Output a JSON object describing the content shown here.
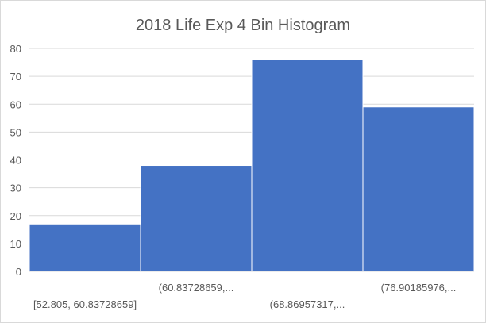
{
  "chart_data": {
    "type": "bar",
    "title": "2018 Life Exp 4 Bin Histogram",
    "categories": [
      "[52.805, 60.83728659]",
      "(60.83728659,...",
      "(68.86957317,...",
      "(76.90185976,..."
    ],
    "values": [
      17,
      38,
      76,
      59
    ],
    "ylim": [
      0,
      80
    ],
    "yticks": [
      0,
      10,
      20,
      30,
      40,
      50,
      60,
      70,
      80
    ],
    "grid": true,
    "legend": "none",
    "bar_color": "#4472c4",
    "grid_color": "#d9d9d9"
  }
}
